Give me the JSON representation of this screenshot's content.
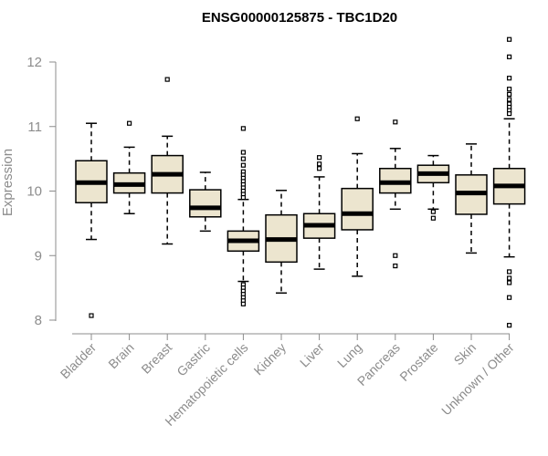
{
  "chart_data": {
    "type": "boxplot",
    "title": "ENSG00000125875 - TBC1D20",
    "xlabel": "",
    "ylabel": "Expression",
    "ylim": [
      7.75,
      12.5
    ],
    "yticks": [
      8,
      9,
      10,
      11,
      12
    ],
    "grid": false,
    "legend": "none",
    "colors": {
      "box_fill": "#ece5cf",
      "box_stroke": "#000000",
      "axis": "#8c8c8c"
    },
    "categories": [
      "Bladder",
      "Brain",
      "Breast",
      "Gastric",
      "Hematopoietic cells",
      "Kidney",
      "Liver",
      "Lung",
      "Pancreas",
      "Prostate",
      "Skin",
      "Unknown / Other"
    ],
    "boxes": [
      {
        "whisker_low": 9.25,
        "q1": 9.82,
        "median": 10.13,
        "q3": 10.47,
        "whisker_high": 11.05,
        "outliers": [
          8.07
        ]
      },
      {
        "whisker_low": 9.65,
        "q1": 9.97,
        "median": 10.1,
        "q3": 10.28,
        "whisker_high": 10.68,
        "outliers": [
          11.05
        ]
      },
      {
        "whisker_low": 9.18,
        "q1": 9.97,
        "median": 10.26,
        "q3": 10.55,
        "whisker_high": 10.85,
        "outliers": [
          11.73
        ]
      },
      {
        "whisker_low": 9.38,
        "q1": 9.6,
        "median": 9.74,
        "q3": 10.02,
        "whisker_high": 10.29,
        "outliers": []
      },
      {
        "whisker_low": 8.6,
        "q1": 9.07,
        "median": 9.23,
        "q3": 9.38,
        "whisker_high": 9.87,
        "outliers": [
          10.97,
          10.6,
          10.5,
          10.4,
          10.3,
          10.25,
          10.2,
          10.15,
          10.1,
          10.05,
          10.0,
          9.95,
          9.9,
          8.55,
          8.5,
          8.45,
          8.4,
          8.35,
          8.3,
          8.25
        ]
      },
      {
        "whisker_low": 8.42,
        "q1": 8.9,
        "median": 9.25,
        "q3": 9.63,
        "whisker_high": 10.01,
        "outliers": []
      },
      {
        "whisker_low": 8.79,
        "q1": 9.27,
        "median": 9.47,
        "q3": 9.65,
        "whisker_high": 10.22,
        "outliers": [
          10.52,
          10.42,
          10.35
        ]
      },
      {
        "whisker_low": 8.68,
        "q1": 9.4,
        "median": 9.65,
        "q3": 10.04,
        "whisker_high": 10.58,
        "outliers": [
          11.12
        ]
      },
      {
        "whisker_low": 9.72,
        "q1": 9.97,
        "median": 10.13,
        "q3": 10.35,
        "whisker_high": 10.66,
        "outliers": [
          11.07,
          9.0,
          8.84
        ]
      },
      {
        "whisker_low": 9.72,
        "q1": 10.13,
        "median": 10.27,
        "q3": 10.4,
        "whisker_high": 10.55,
        "outliers": [
          9.68,
          9.58
        ]
      },
      {
        "whisker_low": 9.04,
        "q1": 9.64,
        "median": 9.97,
        "q3": 10.25,
        "whisker_high": 10.73,
        "outliers": []
      },
      {
        "whisker_low": 8.98,
        "q1": 9.8,
        "median": 10.08,
        "q3": 10.35,
        "whisker_high": 11.12,
        "outliers": [
          12.35,
          12.08,
          11.75,
          11.58,
          11.5,
          11.42,
          11.35,
          11.3,
          11.25,
          11.2,
          8.75,
          8.65,
          8.58,
          8.35,
          7.92
        ]
      }
    ]
  }
}
